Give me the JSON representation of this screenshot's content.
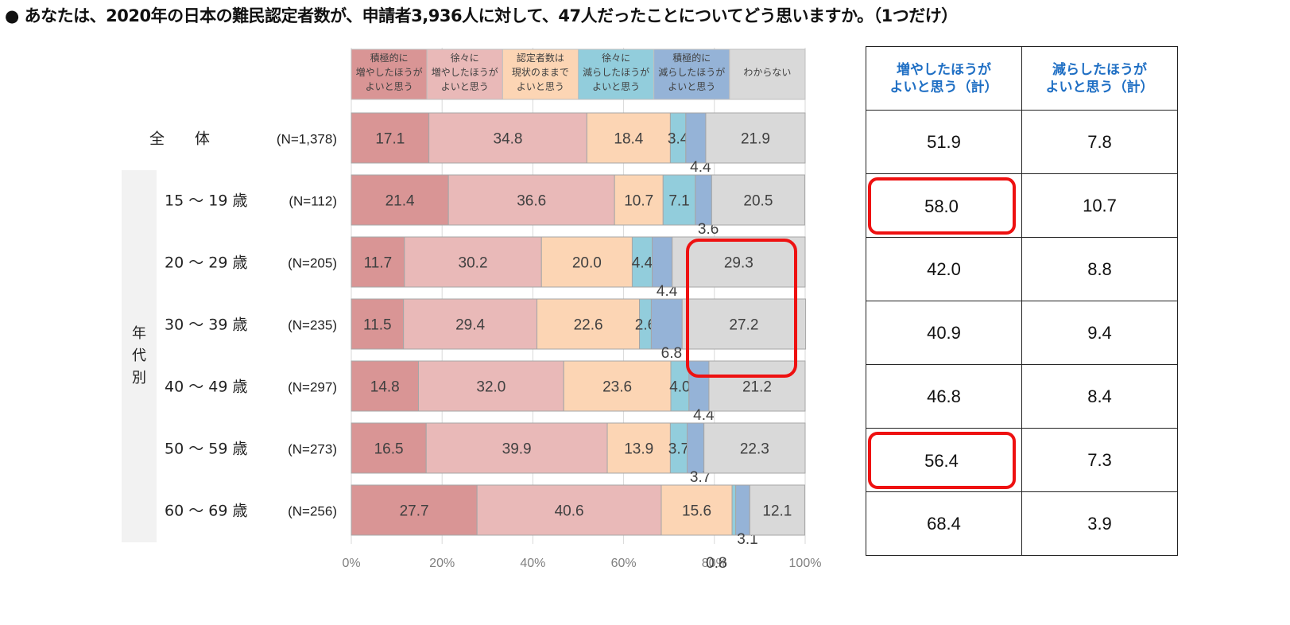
{
  "title": "● あなたは、2020年の日本の難民認定者数が、申請者3,936人に対して、47人だったことについてどう思いますか。（1つだけ）",
  "chart_data": {
    "type": "bar",
    "orientation": "horizontal",
    "stacked": true,
    "xlim": [
      0,
      100
    ],
    "x_ticks": [
      "0%",
      "20%",
      "40%",
      "60%",
      "80%",
      "100%"
    ],
    "group_label": "年代別",
    "legend": [
      {
        "label": "積極的に増やしたほうがよいと思う",
        "lines": [
          "積極的に",
          "増やしたほうが",
          "よいと思う"
        ],
        "color": "#d99595"
      },
      {
        "label": "徐々に増やしたほうがよいと思う",
        "lines": [
          "徐々に",
          "増やしたほうが",
          "よいと思う"
        ],
        "color": "#e9b9b8"
      },
      {
        "label": "認定者数は現状のままでよいと思う",
        "lines": [
          "認定者数は",
          "現状のままで",
          "よいと思う"
        ],
        "color": "#fcd5b4"
      },
      {
        "label": "徐々に減らしたほうがよいと思う",
        "lines": [
          "徐々に",
          "減らしたほうが",
          "よいと思う"
        ],
        "color": "#92cddc"
      },
      {
        "label": "積極的に減らしたほうがよいと思う",
        "lines": [
          "積極的に",
          "減らしたほうが",
          "よいと思う"
        ],
        "color": "#95b3d7"
      },
      {
        "label": "わからない",
        "lines": [
          "わからない"
        ],
        "color": "#d9d9d9"
      }
    ],
    "rows": [
      {
        "label": "全　　体",
        "n": "(N=1,378)",
        "values": [
          17.1,
          34.8,
          18.4,
          3.4,
          4.4,
          21.9
        ]
      },
      {
        "label": "15 ～ 19 歳",
        "n": "(N=112)",
        "values": [
          21.4,
          36.6,
          10.7,
          7.1,
          3.6,
          20.5
        ]
      },
      {
        "label": "20 ～ 29 歳",
        "n": "(N=205)",
        "values": [
          11.7,
          30.2,
          20.0,
          4.4,
          4.4,
          29.3
        ]
      },
      {
        "label": "30 ～ 39 歳",
        "n": "(N=235)",
        "values": [
          11.5,
          29.4,
          22.6,
          2.6,
          6.8,
          27.2
        ]
      },
      {
        "label": "40 ～ 49 歳",
        "n": "(N=297)",
        "values": [
          14.8,
          32.0,
          23.6,
          4.0,
          4.4,
          21.2
        ]
      },
      {
        "label": "50 ～ 59 歳",
        "n": "(N=273)",
        "values": [
          16.5,
          39.9,
          13.9,
          3.7,
          3.7,
          22.3
        ]
      },
      {
        "label": "60 ～ 69 歳",
        "n": "(N=256)",
        "values": [
          27.7,
          40.6,
          15.6,
          0.8,
          3.1,
          12.1
        ]
      }
    ],
    "highlighted_unknown_rows": [
      2,
      3
    ]
  },
  "summary_table": {
    "headers": [
      [
        "増やしたほうが",
        "よいと思う（計）"
      ],
      [
        "減らしたほうが",
        "よいと思う（計）"
      ]
    ],
    "rows": [
      {
        "inc": "51.9",
        "dec": "7.8",
        "hl": false
      },
      {
        "inc": "58.0",
        "dec": "10.7",
        "hl": true
      },
      {
        "inc": "42.0",
        "dec": "8.8",
        "hl": false
      },
      {
        "inc": "40.9",
        "dec": "9.4",
        "hl": false
      },
      {
        "inc": "46.8",
        "dec": "8.4",
        "hl": false
      },
      {
        "inc": "56.4",
        "dec": "7.3",
        "hl": true
      },
      {
        "inc": "68.4",
        "dec": "3.9",
        "hl": false
      }
    ]
  }
}
